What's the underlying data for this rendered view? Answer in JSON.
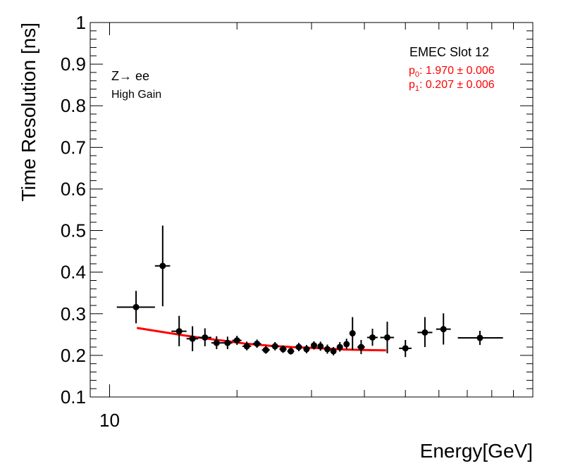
{
  "chart_data": {
    "type": "scatter",
    "title": "",
    "xlabel": "Energy[GeV]",
    "ylabel": "Time Resolution [ns]",
    "x_scale": "log",
    "xlim": [
      9,
      100
    ],
    "ylim": [
      0.1,
      1.0
    ],
    "y_ticks": [
      "0.1",
      "0.2",
      "0.3",
      "0.4",
      "0.5",
      "0.6",
      "0.7",
      "0.8",
      "0.9",
      "1"
    ],
    "x_tick_labels": [
      "10"
    ],
    "annotations": {
      "process": "Z→ ee",
      "gain": "High Gain",
      "slot": "EMEC Slot 12",
      "p0_label": "p",
      "p0_sub": "0",
      "p0_value": ": 1.970 ± 0.006",
      "p1_label": "p",
      "p1_sub": "1",
      "p1_value": ": 0.207 ± 0.006"
    },
    "points": [
      {
        "x": 11.55,
        "y": 0.316,
        "xerr": [
          10.4,
          12.8
        ],
        "yerr": [
          0.277,
          0.355
        ]
      },
      {
        "x": 13.35,
        "y": 0.415,
        "xerr": [
          12.8,
          13.9
        ],
        "yerr": [
          0.318,
          0.512
        ]
      },
      {
        "x": 14.6,
        "y": 0.258,
        "xerr": [
          14.0,
          15.2
        ],
        "yerr": [
          0.222,
          0.295
        ]
      },
      {
        "x": 15.7,
        "y": 0.24,
        "xerr": [
          15.2,
          16.2
        ],
        "yerr": [
          0.21,
          0.27
        ]
      },
      {
        "x": 16.8,
        "y": 0.243,
        "xerr": [
          16.2,
          17.4
        ],
        "yerr": [
          0.222,
          0.265
        ]
      },
      {
        "x": 17.9,
        "y": 0.23,
        "xerr": [
          17.4,
          18.4
        ],
        "yerr": [
          0.215,
          0.246
        ]
      },
      {
        "x": 19.0,
        "y": 0.23,
        "xerr": [
          18.4,
          19.5
        ],
        "yerr": [
          0.215,
          0.245
        ]
      },
      {
        "x": 20.0,
        "y": 0.236,
        "xerr": [
          19.5,
          20.5
        ],
        "yerr": [
          0.225,
          0.247
        ]
      },
      {
        "x": 21.1,
        "y": 0.222,
        "xerr": [
          20.6,
          21.6
        ],
        "yerr": [
          0.212,
          0.233
        ]
      },
      {
        "x": 22.3,
        "y": 0.228,
        "xerr": [
          21.8,
          22.8
        ],
        "yerr": [
          0.218,
          0.238
        ]
      },
      {
        "x": 23.4,
        "y": 0.213,
        "xerr": [
          22.9,
          23.9
        ],
        "yerr": [
          0.204,
          0.223
        ]
      },
      {
        "x": 24.6,
        "y": 0.222,
        "xerr": [
          24.1,
          25.1
        ],
        "yerr": [
          0.212,
          0.232
        ]
      },
      {
        "x": 25.7,
        "y": 0.215,
        "xerr": [
          25.2,
          26.2
        ],
        "yerr": [
          0.206,
          0.224
        ]
      },
      {
        "x": 26.8,
        "y": 0.21,
        "xerr": [
          26.3,
          27.3
        ],
        "yerr": [
          0.202,
          0.219
        ]
      },
      {
        "x": 28.0,
        "y": 0.22,
        "xerr": [
          27.5,
          28.5
        ],
        "yerr": [
          0.21,
          0.23
        ]
      },
      {
        "x": 29.2,
        "y": 0.215,
        "xerr": [
          28.7,
          29.7
        ],
        "yerr": [
          0.205,
          0.225
        ]
      },
      {
        "x": 30.4,
        "y": 0.224,
        "xerr": [
          29.9,
          30.9
        ],
        "yerr": [
          0.214,
          0.234
        ]
      },
      {
        "x": 31.5,
        "y": 0.222,
        "xerr": [
          31.0,
          32.0
        ],
        "yerr": [
          0.211,
          0.233
        ]
      },
      {
        "x": 32.7,
        "y": 0.215,
        "xerr": [
          32.2,
          33.2
        ],
        "yerr": [
          0.204,
          0.226
        ]
      },
      {
        "x": 33.8,
        "y": 0.21,
        "xerr": [
          33.3,
          34.3
        ],
        "yerr": [
          0.2,
          0.22
        ]
      },
      {
        "x": 35.0,
        "y": 0.22,
        "xerr": [
          34.5,
          35.5
        ],
        "yerr": [
          0.209,
          0.232
        ]
      },
      {
        "x": 36.3,
        "y": 0.227,
        "xerr": [
          35.8,
          36.8
        ],
        "yerr": [
          0.215,
          0.24
        ]
      },
      {
        "x": 37.5,
        "y": 0.253,
        "xerr": [
          37.0,
          38.0
        ],
        "yerr": [
          0.213,
          0.292
        ]
      },
      {
        "x": 39.3,
        "y": 0.22,
        "xerr": [
          38.5,
          40.1
        ],
        "yerr": [
          0.203,
          0.237
        ]
      },
      {
        "x": 41.8,
        "y": 0.243,
        "xerr": [
          40.6,
          43.0
        ],
        "yerr": [
          0.223,
          0.264
        ]
      },
      {
        "x": 45.3,
        "y": 0.243,
        "xerr": [
          43.6,
          47.0
        ],
        "yerr": [
          0.205,
          0.281
        ]
      },
      {
        "x": 50.0,
        "y": 0.217,
        "xerr": [
          48.3,
          51.7
        ],
        "yerr": [
          0.196,
          0.237
        ]
      },
      {
        "x": 55.6,
        "y": 0.255,
        "xerr": [
          53.4,
          57.9
        ],
        "yerr": [
          0.22,
          0.292
        ]
      },
      {
        "x": 61.5,
        "y": 0.263,
        "xerr": [
          59.1,
          64.0
        ],
        "yerr": [
          0.226,
          0.301
        ]
      },
      {
        "x": 75.0,
        "y": 0.242,
        "xerr": [
          66.5,
          85.0
        ],
        "yerr": [
          0.225,
          0.259
        ]
      }
    ],
    "fit": {
      "color": "#ff0000",
      "x": [
        11.6,
        13.0,
        15.0,
        17.0,
        19.0,
        21.0,
        24.0,
        27.0,
        30.0,
        33.0,
        36.0,
        40.0,
        45.0
      ],
      "y": [
        0.266,
        0.258,
        0.248,
        0.24,
        0.234,
        0.228,
        0.223,
        0.22,
        0.218,
        0.216,
        0.214,
        0.213,
        0.212
      ]
    }
  }
}
